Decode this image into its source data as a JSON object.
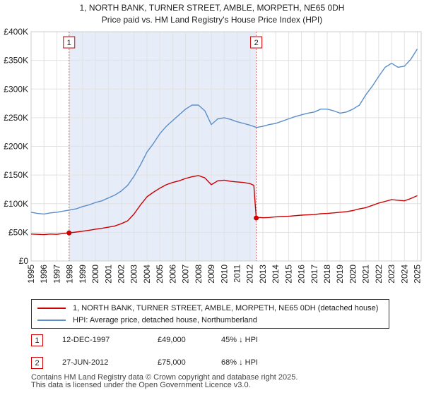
{
  "chart_data": {
    "type": "line",
    "title": "1, NORTH BANK, TURNER STREET, AMBLE, MORPETH, NE65 0DH",
    "subtitle": "Price paid vs. HM Land Registry's House Price Index (HPI)",
    "xlim": [
      1995,
      2025.3
    ],
    "ylim": [
      0,
      400000
    ],
    "x_ticks": [
      "1995",
      "1996",
      "1997",
      "1998",
      "1999",
      "2000",
      "2001",
      "2002",
      "2003",
      "2004",
      "2005",
      "2006",
      "2007",
      "2008",
      "2009",
      "2010",
      "2011",
      "2012",
      "2013",
      "2014",
      "2015",
      "2016",
      "2017",
      "2018",
      "2019",
      "2020",
      "2021",
      "2022",
      "2023",
      "2024",
      "2025"
    ],
    "y_ticks": [
      {
        "value": 0,
        "label": "£0"
      },
      {
        "value": 50000,
        "label": "£50K"
      },
      {
        "value": 100000,
        "label": "£100K"
      },
      {
        "value": 150000,
        "label": "£150K"
      },
      {
        "value": 200000,
        "label": "£200K"
      },
      {
        "value": 250000,
        "label": "£250K"
      },
      {
        "value": 300000,
        "label": "£300K"
      },
      {
        "value": 350000,
        "label": "£350K"
      },
      {
        "value": 400000,
        "label": "£400K"
      }
    ],
    "shade_range": [
      1997.95,
      2012.49
    ],
    "series": [
      {
        "name": "1, NORTH BANK, TURNER STREET, AMBLE, MORPETH, NE65 0DH (detached house)",
        "color": "#cc0000",
        "x": [
          1995,
          1995.5,
          1996,
          1996.5,
          1997,
          1997.5,
          1997.95,
          1998.5,
          1999,
          1999.5,
          2000,
          2000.5,
          2001,
          2001.5,
          2002,
          2002.5,
          2003,
          2003.5,
          2004,
          2004.5,
          2005,
          2005.5,
          2006,
          2006.5,
          2007,
          2007.5,
          2008,
          2008.5,
          2009,
          2009.5,
          2010,
          2010.5,
          2011,
          2011.5,
          2012,
          2012.3,
          2012.49,
          2012.8,
          2013,
          2013.5,
          2014,
          2014.5,
          2015,
          2015.5,
          2016,
          2016.5,
          2017,
          2017.5,
          2018,
          2018.5,
          2019,
          2019.5,
          2020,
          2020.5,
          2021,
          2021.5,
          2022,
          2022.5,
          2023,
          2023.5,
          2024,
          2024.5,
          2025
        ],
        "y": [
          47000,
          46500,
          46000,
          47000,
          46500,
          48000,
          49000,
          50500,
          52000,
          53500,
          55500,
          57000,
          59000,
          61000,
          65000,
          70000,
          82000,
          98000,
          112000,
          120000,
          127000,
          133000,
          137000,
          140000,
          144000,
          147000,
          149000,
          145000,
          133000,
          140000,
          141000,
          139000,
          138000,
          137000,
          135000,
          132000,
          75000,
          76000,
          75500,
          76000,
          77000,
          77500,
          78000,
          79000,
          80000,
          80500,
          81000,
          82500,
          83000,
          84000,
          85000,
          86000,
          88000,
          91000,
          93000,
          97000,
          101000,
          104000,
          107000,
          106000,
          105000,
          109000,
          114000
        ]
      },
      {
        "name": "HPI: Average price, detached house, Northumberland",
        "color": "#5b8ec9",
        "x": [
          1995,
          1995.5,
          1996,
          1996.5,
          1997,
          1997.5,
          1998,
          1998.5,
          1999,
          1999.5,
          2000,
          2000.5,
          2001,
          2001.5,
          2002,
          2002.5,
          2003,
          2003.5,
          2004,
          2004.5,
          2005,
          2005.5,
          2006,
          2006.5,
          2007,
          2007.5,
          2008,
          2008.5,
          2009,
          2009.5,
          2010,
          2010.5,
          2011,
          2011.5,
          2012,
          2012.5,
          2013,
          2013.5,
          2014,
          2014.5,
          2015,
          2015.5,
          2016,
          2016.5,
          2017,
          2017.5,
          2018,
          2018.5,
          2019,
          2019.5,
          2020,
          2020.5,
          2021,
          2021.5,
          2022,
          2022.5,
          2023,
          2023.5,
          2024,
          2024.5,
          2025
        ],
        "y": [
          85000,
          83000,
          82000,
          84000,
          85000,
          87000,
          89000,
          91000,
          95000,
          98000,
          102000,
          105000,
          110000,
          115000,
          122000,
          132000,
          148000,
          168000,
          190000,
          205000,
          222000,
          235000,
          245000,
          255000,
          265000,
          272000,
          272000,
          262000,
          238000,
          248000,
          250000,
          247000,
          243000,
          240000,
          237000,
          233000,
          235000,
          238000,
          240000,
          244000,
          248000,
          252000,
          255000,
          258000,
          260000,
          265000,
          265000,
          262000,
          258000,
          260000,
          265000,
          272000,
          290000,
          305000,
          322000,
          338000,
          345000,
          338000,
          340000,
          352000,
          370000
        ]
      }
    ],
    "markers": [
      {
        "label": "1",
        "x": 1997.95,
        "y": 49000
      },
      {
        "label": "2",
        "x": 2012.49,
        "y": 75000
      }
    ]
  },
  "legend": {
    "red_label": "1, NORTH BANK, TURNER STREET, AMBLE, MORPETH, NE65 0DH (detached house)",
    "blue_label": "HPI: Average price, detached house, Northumberland"
  },
  "transactions": [
    {
      "num": "1",
      "date": "12-DEC-1997",
      "price": "£49,000",
      "hpi": "45% ↓ HPI"
    },
    {
      "num": "2",
      "date": "27-JUN-2012",
      "price": "£75,000",
      "hpi": "68% ↓ HPI"
    }
  ],
  "footer": {
    "line1": "Contains HM Land Registry data © Crown copyright and database right 2025.",
    "line2": "This data is licensed under the Open Government Licence v3.0."
  }
}
